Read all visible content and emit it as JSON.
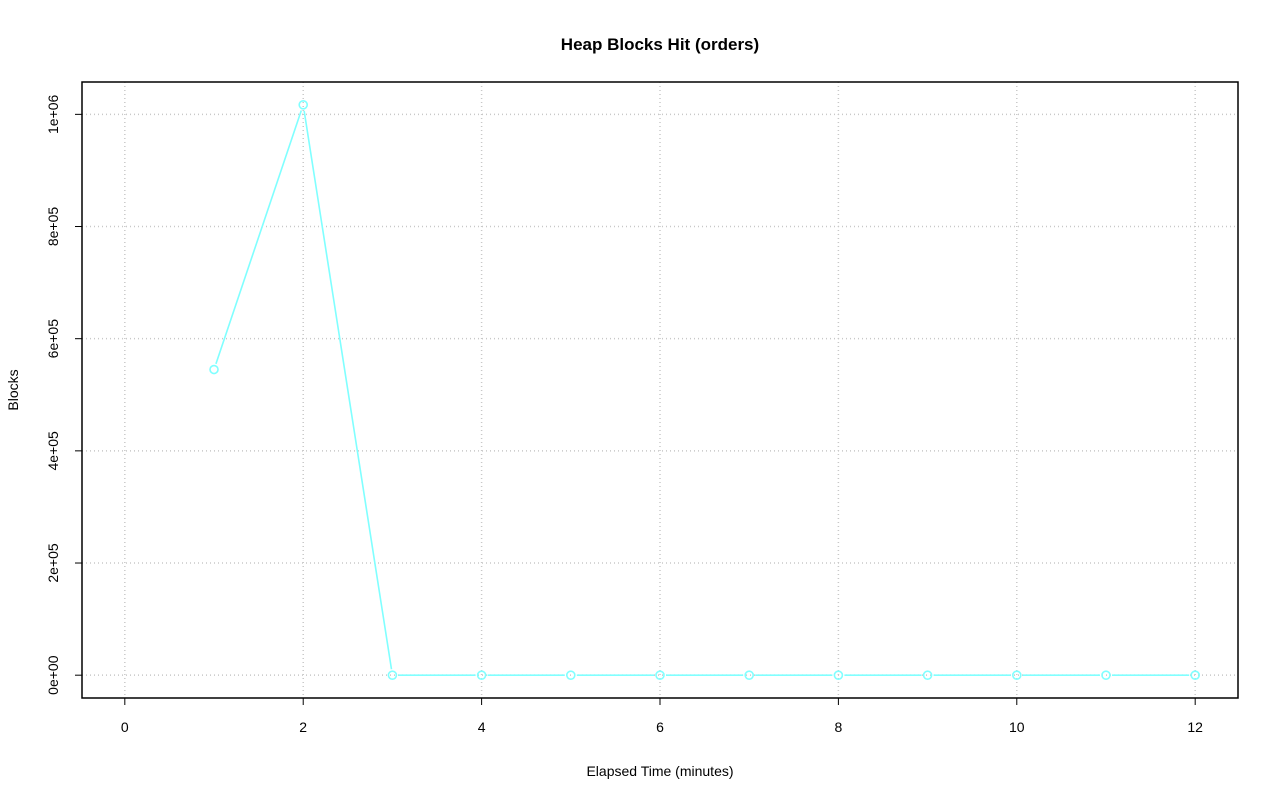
{
  "chart_data": {
    "type": "line",
    "title": "Heap Blocks Hit (orders)",
    "xlabel": "Elapsed Time (minutes)",
    "ylabel": "Blocks",
    "x": [
      1,
      2,
      3,
      4,
      5,
      6,
      7,
      8,
      9,
      10,
      11,
      12
    ],
    "series": [
      {
        "values": [
          545000,
          1017000,
          0,
          0,
          0,
          0,
          0,
          0,
          0,
          0,
          0,
          0
        ],
        "color": "#80ffff"
      }
    ],
    "xlim": [
      0,
      12
    ],
    "ylim": [
      0,
      1017000
    ],
    "xticks": [
      0,
      2,
      4,
      6,
      8,
      10,
      12
    ],
    "xtick_labels": [
      "0",
      "2",
      "4",
      "6",
      "8",
      "10",
      "12"
    ],
    "yticks": [
      0,
      200000,
      400000,
      600000,
      800000,
      1000000
    ],
    "ytick_labels": [
      "0e+00",
      "2e+05",
      "4e+05",
      "6e+05",
      "8e+05",
      "1e+06"
    ],
    "grid": true,
    "markers": "open-circle"
  }
}
